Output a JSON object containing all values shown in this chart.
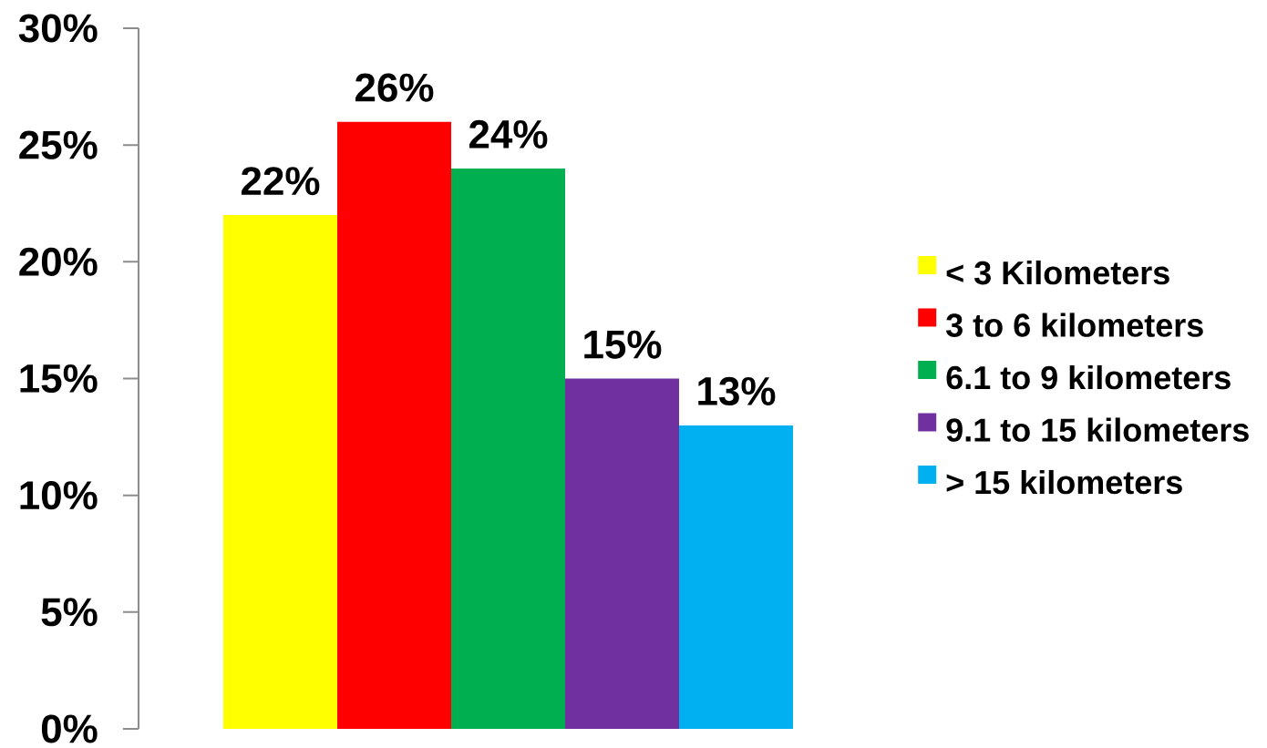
{
  "chart_data": {
    "type": "bar",
    "categories": [
      null
    ],
    "series": [
      {
        "name": "< 3 Kilometers",
        "color": "#ffff00",
        "values": [
          22
        ],
        "value_labels": [
          "22%"
        ]
      },
      {
        "name": "3 to 6 kilometers",
        "color": "#ff0000",
        "values": [
          26
        ],
        "value_labels": [
          "26%"
        ]
      },
      {
        "name": "6.1 to 9 kilometers",
        "color": "#00b050",
        "values": [
          24
        ],
        "value_labels": [
          "24%"
        ]
      },
      {
        "name": "9.1 to 15 kilometers",
        "color": "#7030a0",
        "values": [
          15
        ],
        "value_labels": [
          "15%"
        ]
      },
      {
        "name": "> 15 kilometers",
        "color": "#00b0f0",
        "values": [
          13
        ],
        "value_labels": [
          "13%"
        ]
      }
    ],
    "ylim": [
      0,
      30
    ],
    "yticks": [
      {
        "value": 0,
        "label": "0%"
      },
      {
        "value": 5,
        "label": "5%"
      },
      {
        "value": 10,
        "label": "10%"
      },
      {
        "value": 15,
        "label": "15%"
      },
      {
        "value": 20,
        "label": "20%"
      },
      {
        "value": 25,
        "label": "25%"
      },
      {
        "value": 30,
        "label": "30%"
      }
    ],
    "legend": "right"
  }
}
